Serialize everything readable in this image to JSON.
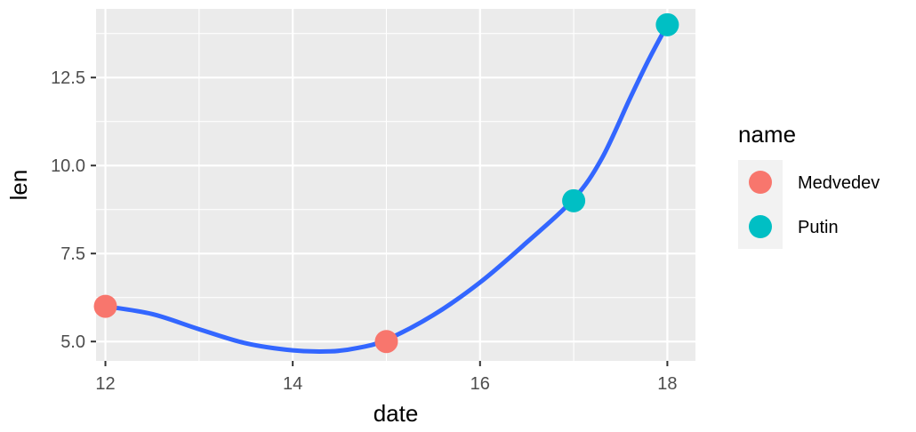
{
  "chart_data": {
    "type": "scatter",
    "xlabel": "date",
    "ylabel": "len",
    "xlim": [
      11.9,
      18.3
    ],
    "ylim": [
      4.45,
      14.45
    ],
    "x_ticks": [
      12,
      14,
      16,
      18
    ],
    "x_tick_labels": [
      "12",
      "14",
      "16",
      "18"
    ],
    "y_ticks": [
      5.0,
      7.5,
      10.0,
      12.5
    ],
    "y_tick_labels": [
      "5.0",
      "7.5",
      "10.0",
      "12.5"
    ],
    "grid": true,
    "legend": {
      "title": "name",
      "position": "right"
    },
    "series": [
      {
        "name": "Medvedev",
        "color": "#F8766D",
        "points": [
          [
            12,
            6
          ],
          [
            15,
            5
          ]
        ]
      },
      {
        "name": "Putin",
        "color": "#00BFC4",
        "points": [
          [
            17,
            9
          ],
          [
            18,
            14
          ]
        ]
      }
    ],
    "smooth": {
      "color": "#3366FF",
      "x": [
        12,
        12.5,
        13,
        13.5,
        14,
        14.4,
        14.7,
        15,
        15.5,
        16,
        16.5,
        17,
        17.3,
        17.6,
        17.8,
        18
      ],
      "y": [
        6.0,
        5.78,
        5.35,
        4.95,
        4.75,
        4.72,
        4.82,
        5.05,
        5.75,
        6.68,
        7.82,
        9.05,
        10.2,
        11.9,
        13.0,
        14.0
      ]
    }
  }
}
